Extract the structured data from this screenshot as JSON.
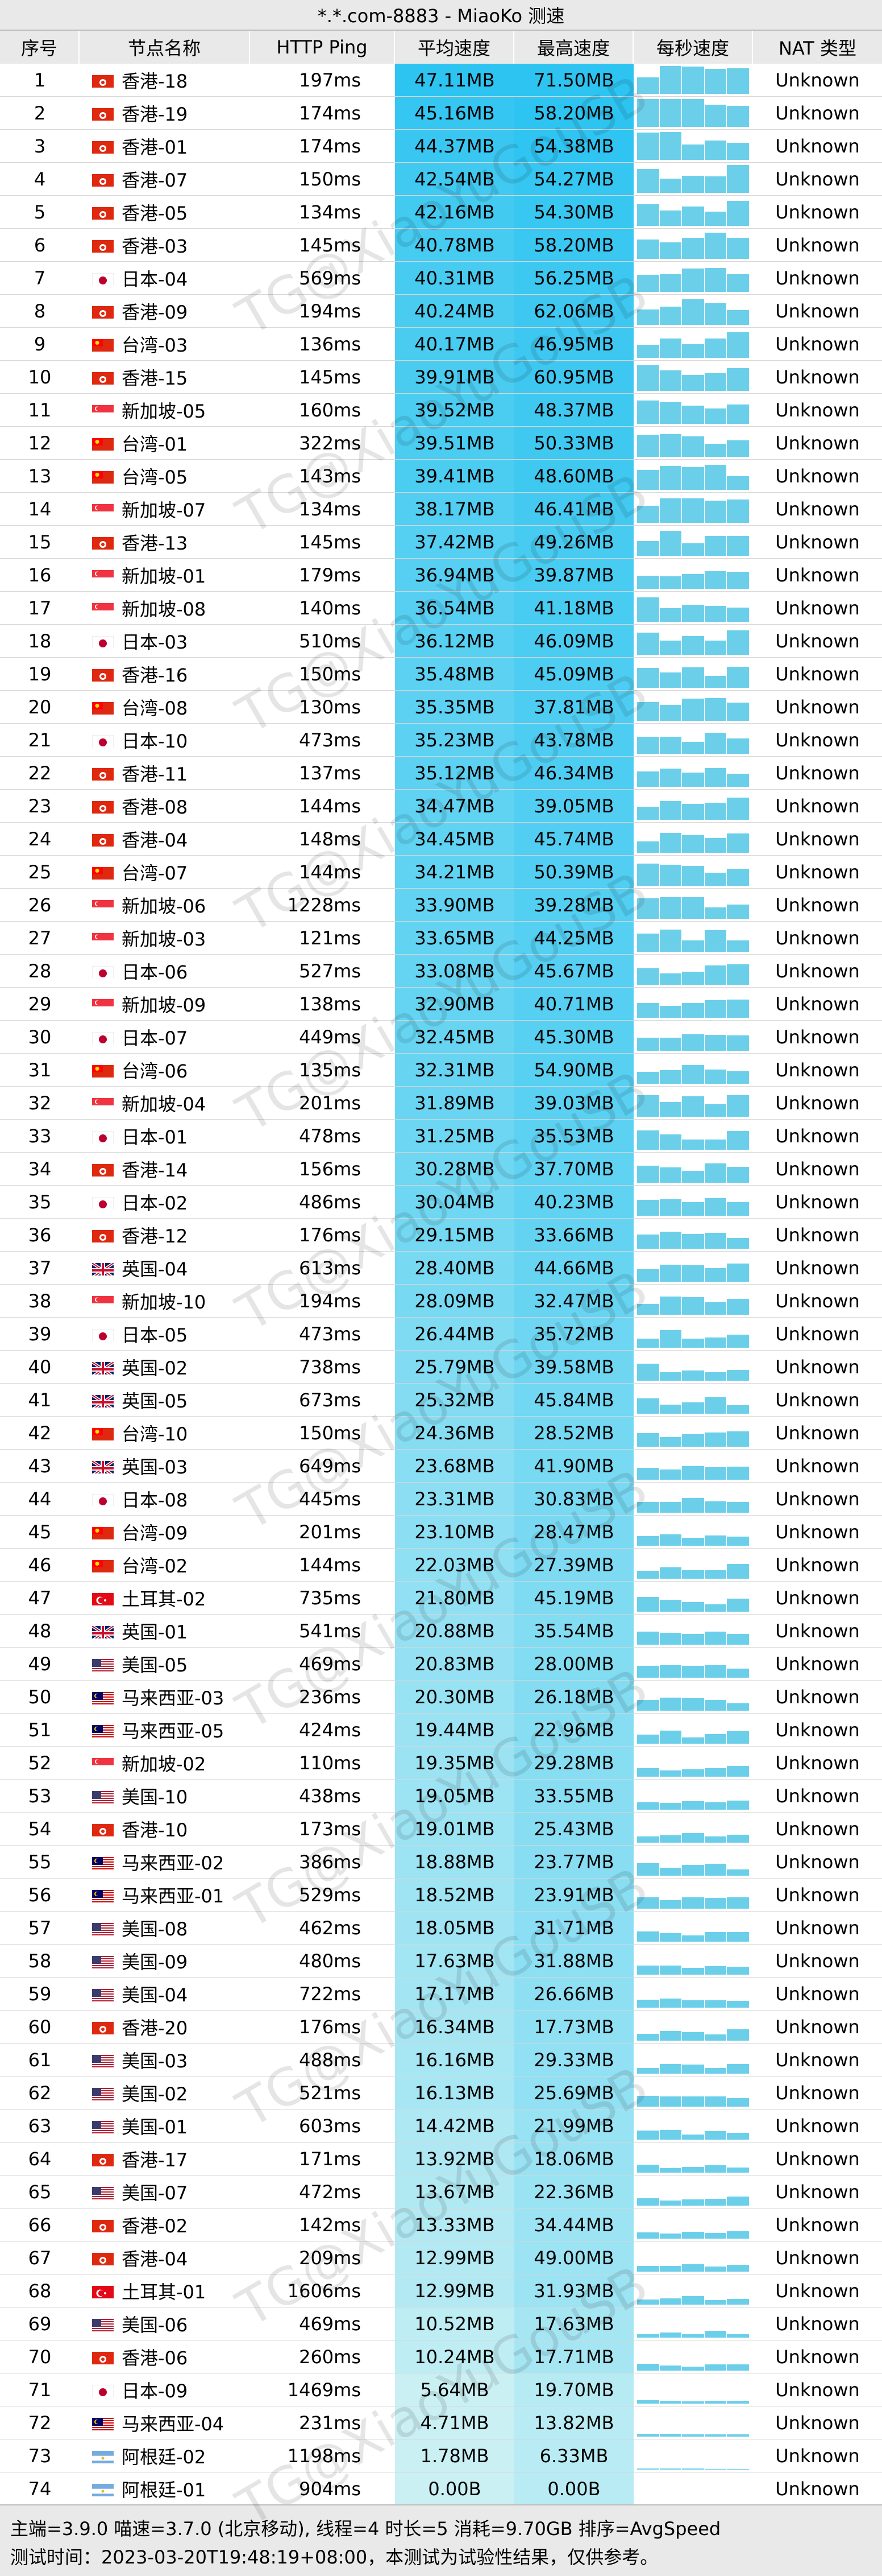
{
  "window": {
    "title": "*.*.com-8883 - MiaoKo 测速"
  },
  "columns": [
    "序号",
    "节点名称",
    "HTTP Ping",
    "平均速度",
    "最高速度",
    "每秒速度",
    "NAT 类型"
  ],
  "watermark": "TG@XiaoYuGouSB",
  "colors": {
    "header_bg": "#e9e9e9",
    "speed_high": "#2ec4f1",
    "speed_low": "#e6f8f4",
    "bar": "#6ccfea"
  },
  "flag_icons": {
    "HK": "hong-kong-flag-icon",
    "JP": "japan-flag-icon",
    "TW": "taiwan-flag-icon",
    "SG": "singapore-flag-icon",
    "GB": "uk-flag-icon",
    "TR": "turkey-flag-icon",
    "US": "usa-flag-icon",
    "MY": "malaysia-flag-icon",
    "AR": "argentina-flag-icon"
  },
  "rows": [
    {
      "idx": "1",
      "flag": "HK",
      "name": "香港-18",
      "ping": "197ms",
      "avg": "47.11MB",
      "max": "71.50MB",
      "nat": "Unknown",
      "level": 1.0
    },
    {
      "idx": "2",
      "flag": "HK",
      "name": "香港-19",
      "ping": "174ms",
      "avg": "45.16MB",
      "max": "58.20MB",
      "nat": "Unknown",
      "level": 0.96
    },
    {
      "idx": "3",
      "flag": "HK",
      "name": "香港-01",
      "ping": "174ms",
      "avg": "44.37MB",
      "max": "54.38MB",
      "nat": "Unknown",
      "level": 0.94
    },
    {
      "idx": "4",
      "flag": "HK",
      "name": "香港-07",
      "ping": "150ms",
      "avg": "42.54MB",
      "max": "54.27MB",
      "nat": "Unknown",
      "level": 0.9
    },
    {
      "idx": "5",
      "flag": "HK",
      "name": "香港-05",
      "ping": "134ms",
      "avg": "42.16MB",
      "max": "54.30MB",
      "nat": "Unknown",
      "level": 0.89
    },
    {
      "idx": "6",
      "flag": "HK",
      "name": "香港-03",
      "ping": "145ms",
      "avg": "40.78MB",
      "max": "58.20MB",
      "nat": "Unknown",
      "level": 0.87
    },
    {
      "idx": "7",
      "flag": "JP",
      "name": "日本-04",
      "ping": "569ms",
      "avg": "40.31MB",
      "max": "56.25MB",
      "nat": "Unknown",
      "level": 0.86
    },
    {
      "idx": "8",
      "flag": "HK",
      "name": "香港-09",
      "ping": "194ms",
      "avg": "40.24MB",
      "max": "62.06MB",
      "nat": "Unknown",
      "level": 0.85
    },
    {
      "idx": "9",
      "flag": "TW",
      "name": "台湾-03",
      "ping": "136ms",
      "avg": "40.17MB",
      "max": "46.95MB",
      "nat": "Unknown",
      "level": 0.85
    },
    {
      "idx": "10",
      "flag": "HK",
      "name": "香港-15",
      "ping": "145ms",
      "avg": "39.91MB",
      "max": "60.95MB",
      "nat": "Unknown",
      "level": 0.85
    },
    {
      "idx": "11",
      "flag": "SG",
      "name": "新加坡-05",
      "ping": "160ms",
      "avg": "39.52MB",
      "max": "48.37MB",
      "nat": "Unknown",
      "level": 0.84
    },
    {
      "idx": "12",
      "flag": "TW",
      "name": "台湾-01",
      "ping": "322ms",
      "avg": "39.51MB",
      "max": "50.33MB",
      "nat": "Unknown",
      "level": 0.84
    },
    {
      "idx": "13",
      "flag": "TW",
      "name": "台湾-05",
      "ping": "143ms",
      "avg": "39.41MB",
      "max": "48.60MB",
      "nat": "Unknown",
      "level": 0.84
    },
    {
      "idx": "14",
      "flag": "SG",
      "name": "新加坡-07",
      "ping": "134ms",
      "avg": "38.17MB",
      "max": "46.41MB",
      "nat": "Unknown",
      "level": 0.81
    },
    {
      "idx": "15",
      "flag": "HK",
      "name": "香港-13",
      "ping": "145ms",
      "avg": "37.42MB",
      "max": "49.26MB",
      "nat": "Unknown",
      "level": 0.79
    },
    {
      "idx": "16",
      "flag": "SG",
      "name": "新加坡-01",
      "ping": "179ms",
      "avg": "36.94MB",
      "max": "39.87MB",
      "nat": "Unknown",
      "level": 0.78
    },
    {
      "idx": "17",
      "flag": "SG",
      "name": "新加坡-08",
      "ping": "140ms",
      "avg": "36.54MB",
      "max": "41.18MB",
      "nat": "Unknown",
      "level": 0.78
    },
    {
      "idx": "18",
      "flag": "JP",
      "name": "日本-03",
      "ping": "510ms",
      "avg": "36.12MB",
      "max": "46.09MB",
      "nat": "Unknown",
      "level": 0.77
    },
    {
      "idx": "19",
      "flag": "HK",
      "name": "香港-16",
      "ping": "150ms",
      "avg": "35.48MB",
      "max": "45.09MB",
      "nat": "Unknown",
      "level": 0.75
    },
    {
      "idx": "20",
      "flag": "TW",
      "name": "台湾-08",
      "ping": "130ms",
      "avg": "35.35MB",
      "max": "37.81MB",
      "nat": "Unknown",
      "level": 0.75
    },
    {
      "idx": "21",
      "flag": "JP",
      "name": "日本-10",
      "ping": "473ms",
      "avg": "35.23MB",
      "max": "43.78MB",
      "nat": "Unknown",
      "level": 0.75
    },
    {
      "idx": "22",
      "flag": "HK",
      "name": "香港-11",
      "ping": "137ms",
      "avg": "35.12MB",
      "max": "46.34MB",
      "nat": "Unknown",
      "level": 0.75
    },
    {
      "idx": "23",
      "flag": "HK",
      "name": "香港-08",
      "ping": "144ms",
      "avg": "34.47MB",
      "max": "39.05MB",
      "nat": "Unknown",
      "level": 0.73
    },
    {
      "idx": "24",
      "flag": "HK",
      "name": "香港-04",
      "ping": "148ms",
      "avg": "34.45MB",
      "max": "45.74MB",
      "nat": "Unknown",
      "level": 0.73
    },
    {
      "idx": "25",
      "flag": "TW",
      "name": "台湾-07",
      "ping": "144ms",
      "avg": "34.21MB",
      "max": "50.39MB",
      "nat": "Unknown",
      "level": 0.73
    },
    {
      "idx": "26",
      "flag": "SG",
      "name": "新加坡-06",
      "ping": "1228ms",
      "avg": "33.90MB",
      "max": "39.28MB",
      "nat": "Unknown",
      "level": 0.72
    },
    {
      "idx": "27",
      "flag": "SG",
      "name": "新加坡-03",
      "ping": "121ms",
      "avg": "33.65MB",
      "max": "44.25MB",
      "nat": "Unknown",
      "level": 0.71
    },
    {
      "idx": "28",
      "flag": "JP",
      "name": "日本-06",
      "ping": "527ms",
      "avg": "33.08MB",
      "max": "45.67MB",
      "nat": "Unknown",
      "level": 0.7
    },
    {
      "idx": "29",
      "flag": "SG",
      "name": "新加坡-09",
      "ping": "138ms",
      "avg": "32.90MB",
      "max": "40.71MB",
      "nat": "Unknown",
      "level": 0.7
    },
    {
      "idx": "30",
      "flag": "JP",
      "name": "日本-07",
      "ping": "449ms",
      "avg": "32.45MB",
      "max": "45.30MB",
      "nat": "Unknown",
      "level": 0.69
    },
    {
      "idx": "31",
      "flag": "TW",
      "name": "台湾-06",
      "ping": "135ms",
      "avg": "32.31MB",
      "max": "54.90MB",
      "nat": "Unknown",
      "level": 0.69
    },
    {
      "idx": "32",
      "flag": "SG",
      "name": "新加坡-04",
      "ping": "201ms",
      "avg": "31.89MB",
      "max": "39.03MB",
      "nat": "Unknown",
      "level": 0.68
    },
    {
      "idx": "33",
      "flag": "JP",
      "name": "日本-01",
      "ping": "478ms",
      "avg": "31.25MB",
      "max": "35.53MB",
      "nat": "Unknown",
      "level": 0.66
    },
    {
      "idx": "34",
      "flag": "HK",
      "name": "香港-14",
      "ping": "156ms",
      "avg": "30.28MB",
      "max": "37.70MB",
      "nat": "Unknown",
      "level": 0.64
    },
    {
      "idx": "35",
      "flag": "JP",
      "name": "日本-02",
      "ping": "486ms",
      "avg": "30.04MB",
      "max": "40.23MB",
      "nat": "Unknown",
      "level": 0.64
    },
    {
      "idx": "36",
      "flag": "HK",
      "name": "香港-12",
      "ping": "176ms",
      "avg": "29.15MB",
      "max": "33.66MB",
      "nat": "Unknown",
      "level": 0.62
    },
    {
      "idx": "37",
      "flag": "GB",
      "name": "英国-04",
      "ping": "613ms",
      "avg": "28.40MB",
      "max": "44.66MB",
      "nat": "Unknown",
      "level": 0.6
    },
    {
      "idx": "38",
      "flag": "SG",
      "name": "新加坡-10",
      "ping": "194ms",
      "avg": "28.09MB",
      "max": "32.47MB",
      "nat": "Unknown",
      "level": 0.6
    },
    {
      "idx": "39",
      "flag": "JP",
      "name": "日本-05",
      "ping": "473ms",
      "avg": "26.44MB",
      "max": "35.72MB",
      "nat": "Unknown",
      "level": 0.56
    },
    {
      "idx": "40",
      "flag": "GB",
      "name": "英国-02",
      "ping": "738ms",
      "avg": "25.79MB",
      "max": "39.58MB",
      "nat": "Unknown",
      "level": 0.55
    },
    {
      "idx": "41",
      "flag": "GB",
      "name": "英国-05",
      "ping": "673ms",
      "avg": "25.32MB",
      "max": "45.84MB",
      "nat": "Unknown",
      "level": 0.54
    },
    {
      "idx": "42",
      "flag": "TW",
      "name": "台湾-10",
      "ping": "150ms",
      "avg": "24.36MB",
      "max": "28.52MB",
      "nat": "Unknown",
      "level": 0.52
    },
    {
      "idx": "43",
      "flag": "GB",
      "name": "英国-03",
      "ping": "649ms",
      "avg": "23.68MB",
      "max": "41.90MB",
      "nat": "Unknown",
      "level": 0.5
    },
    {
      "idx": "44",
      "flag": "JP",
      "name": "日本-08",
      "ping": "445ms",
      "avg": "23.31MB",
      "max": "30.83MB",
      "nat": "Unknown",
      "level": 0.49
    },
    {
      "idx": "45",
      "flag": "TW",
      "name": "台湾-09",
      "ping": "201ms",
      "avg": "23.10MB",
      "max": "28.47MB",
      "nat": "Unknown",
      "level": 0.49
    },
    {
      "idx": "46",
      "flag": "TW",
      "name": "台湾-02",
      "ping": "144ms",
      "avg": "22.03MB",
      "max": "27.39MB",
      "nat": "Unknown",
      "level": 0.47
    },
    {
      "idx": "47",
      "flag": "TR",
      "name": "土耳其-02",
      "ping": "735ms",
      "avg": "21.80MB",
      "max": "45.19MB",
      "nat": "Unknown",
      "level": 0.46
    },
    {
      "idx": "48",
      "flag": "GB",
      "name": "英国-01",
      "ping": "541ms",
      "avg": "20.88MB",
      "max": "35.54MB",
      "nat": "Unknown",
      "level": 0.44
    },
    {
      "idx": "49",
      "flag": "US",
      "name": "美国-05",
      "ping": "469ms",
      "avg": "20.83MB",
      "max": "28.00MB",
      "nat": "Unknown",
      "level": 0.44
    },
    {
      "idx": "50",
      "flag": "MY",
      "name": "马来西亚-03",
      "ping": "236ms",
      "avg": "20.30MB",
      "max": "26.18MB",
      "nat": "Unknown",
      "level": 0.43
    },
    {
      "idx": "51",
      "flag": "MY",
      "name": "马来西亚-05",
      "ping": "424ms",
      "avg": "19.44MB",
      "max": "22.96MB",
      "nat": "Unknown",
      "level": 0.41
    },
    {
      "idx": "52",
      "flag": "SG",
      "name": "新加坡-02",
      "ping": "110ms",
      "avg": "19.35MB",
      "max": "29.28MB",
      "nat": "Unknown",
      "level": 0.41
    },
    {
      "idx": "53",
      "flag": "US",
      "name": "美国-10",
      "ping": "438ms",
      "avg": "19.05MB",
      "max": "33.55MB",
      "nat": "Unknown",
      "level": 0.4
    },
    {
      "idx": "54",
      "flag": "HK",
      "name": "香港-10",
      "ping": "173ms",
      "avg": "19.01MB",
      "max": "25.43MB",
      "nat": "Unknown",
      "level": 0.4
    },
    {
      "idx": "55",
      "flag": "MY",
      "name": "马来西亚-02",
      "ping": "386ms",
      "avg": "18.88MB",
      "max": "23.77MB",
      "nat": "Unknown",
      "level": 0.4
    },
    {
      "idx": "56",
      "flag": "MY",
      "name": "马来西亚-01",
      "ping": "529ms",
      "avg": "18.52MB",
      "max": "23.91MB",
      "nat": "Unknown",
      "level": 0.39
    },
    {
      "idx": "57",
      "flag": "US",
      "name": "美国-08",
      "ping": "462ms",
      "avg": "18.05MB",
      "max": "31.71MB",
      "nat": "Unknown",
      "level": 0.38
    },
    {
      "idx": "58",
      "flag": "US",
      "name": "美国-09",
      "ping": "480ms",
      "avg": "17.63MB",
      "max": "31.88MB",
      "nat": "Unknown",
      "level": 0.37
    },
    {
      "idx": "59",
      "flag": "US",
      "name": "美国-04",
      "ping": "722ms",
      "avg": "17.17MB",
      "max": "26.66MB",
      "nat": "Unknown",
      "level": 0.36
    },
    {
      "idx": "60",
      "flag": "HK",
      "name": "香港-20",
      "ping": "176ms",
      "avg": "16.34MB",
      "max": "17.73MB",
      "nat": "Unknown",
      "level": 0.35
    },
    {
      "idx": "61",
      "flag": "US",
      "name": "美国-03",
      "ping": "488ms",
      "avg": "16.16MB",
      "max": "29.33MB",
      "nat": "Unknown",
      "level": 0.34
    },
    {
      "idx": "62",
      "flag": "US",
      "name": "美国-02",
      "ping": "521ms",
      "avg": "16.13MB",
      "max": "25.69MB",
      "nat": "Unknown",
      "level": 0.34
    },
    {
      "idx": "63",
      "flag": "US",
      "name": "美国-01",
      "ping": "603ms",
      "avg": "14.42MB",
      "max": "21.99MB",
      "nat": "Unknown",
      "level": 0.31
    },
    {
      "idx": "64",
      "flag": "HK",
      "name": "香港-17",
      "ping": "171ms",
      "avg": "13.92MB",
      "max": "18.06MB",
      "nat": "Unknown",
      "level": 0.3
    },
    {
      "idx": "65",
      "flag": "US",
      "name": "美国-07",
      "ping": "472ms",
      "avg": "13.67MB",
      "max": "22.36MB",
      "nat": "Unknown",
      "level": 0.29
    },
    {
      "idx": "66",
      "flag": "HK",
      "name": "香港-02",
      "ping": "142ms",
      "avg": "13.33MB",
      "max": "34.44MB",
      "nat": "Unknown",
      "level": 0.28
    },
    {
      "idx": "67",
      "flag": "HK",
      "name": "香港-04",
      "ping": "209ms",
      "avg": "12.99MB",
      "max": "49.00MB",
      "nat": "Unknown",
      "level": 0.28
    },
    {
      "idx": "68",
      "flag": "TR",
      "name": "土耳其-01",
      "ping": "1606ms",
      "avg": "12.99MB",
      "max": "31.93MB",
      "nat": "Unknown",
      "level": 0.28
    },
    {
      "idx": "69",
      "flag": "US",
      "name": "美国-06",
      "ping": "469ms",
      "avg": "10.52MB",
      "max": "17.63MB",
      "nat": "Unknown",
      "level": 0.22
    },
    {
      "idx": "70",
      "flag": "HK",
      "name": "香港-06",
      "ping": "260ms",
      "avg": "10.24MB",
      "max": "17.71MB",
      "nat": "Unknown",
      "level": 0.22
    },
    {
      "idx": "71",
      "flag": "JP",
      "name": "日本-09",
      "ping": "1469ms",
      "avg": "5.64MB",
      "max": "19.70MB",
      "nat": "Unknown",
      "level": 0.12
    },
    {
      "idx": "72",
      "flag": "MY",
      "name": "马来西亚-04",
      "ping": "231ms",
      "avg": "4.71MB",
      "max": "13.82MB",
      "nat": "Unknown",
      "level": 0.1
    },
    {
      "idx": "73",
      "flag": "AR",
      "name": "阿根廷-02",
      "ping": "1198ms",
      "avg": "1.78MB",
      "max": "6.33MB",
      "nat": "Unknown",
      "level": 0.04
    },
    {
      "idx": "74",
      "flag": "AR",
      "name": "阿根廷-01",
      "ping": "904ms",
      "avg": "0.00B",
      "max": "0.00B",
      "nat": "Unknown",
      "level": 0.0
    }
  ],
  "footer": {
    "line1": "主端=3.9.0 喵速=3.7.0 (北京移动), 线程=4 时长=5 消耗=9.70GB 排序=AvgSpeed",
    "line2": "测试时间：2023-03-20T19:48:19+08:00，本测试为试验性结果，仅供参考。"
  }
}
